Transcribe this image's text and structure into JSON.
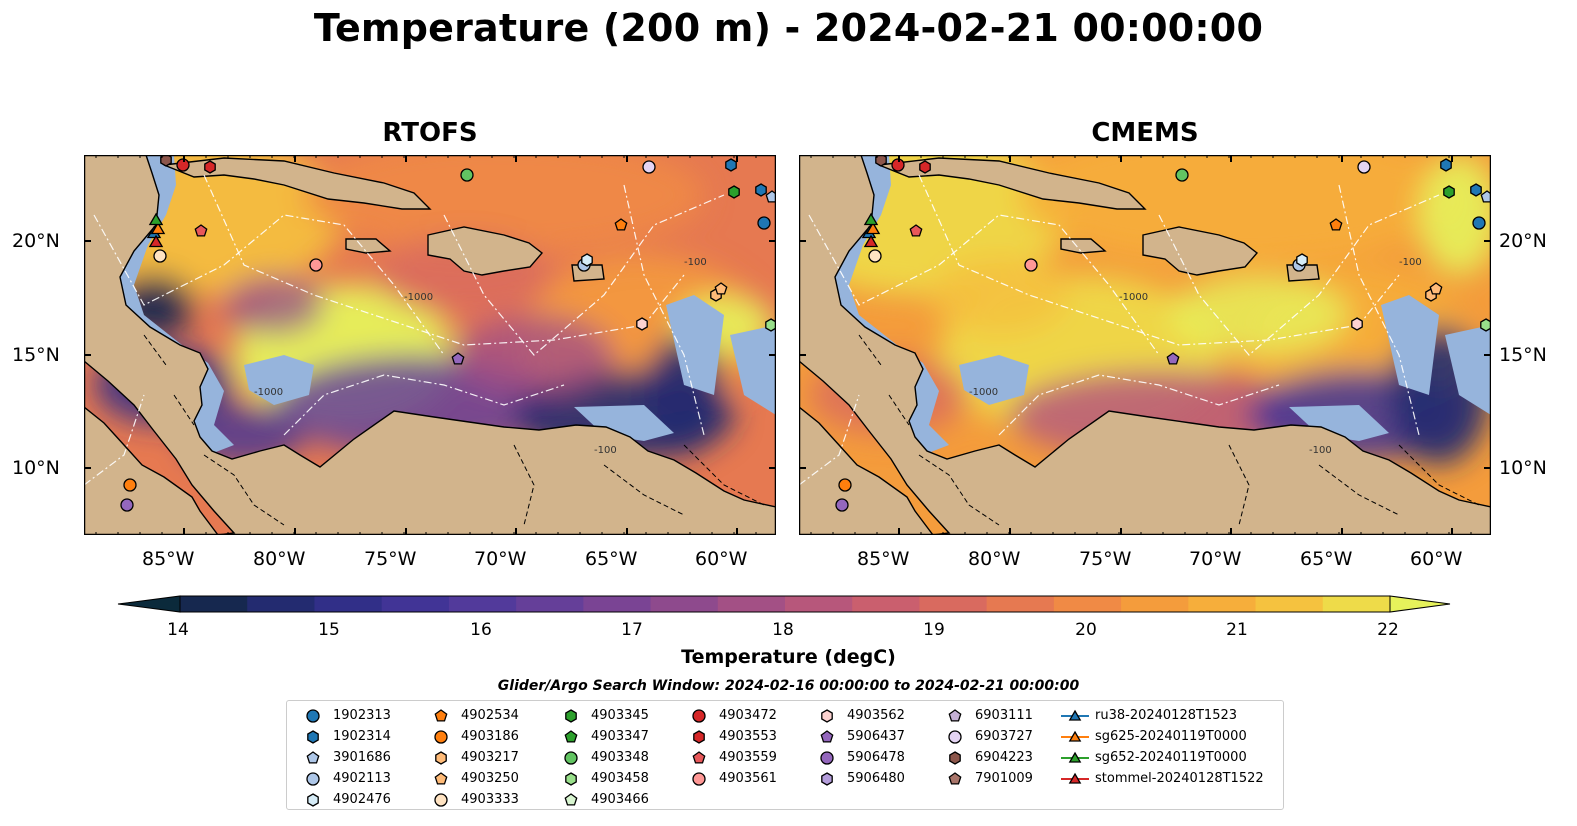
{
  "title": "Temperature (200 m) - 2024-02-21 00:00:00",
  "panels": [
    {
      "title": "RTOFS"
    },
    {
      "title": "CMEMS"
    }
  ],
  "lat_ticks": [
    "20°N",
    "15°N",
    "10°N"
  ],
  "lon_ticks": [
    "85°W",
    "80°W",
    "75°W",
    "70°W",
    "65°W",
    "60°W"
  ],
  "colorbar": {
    "label": "Temperature (degC)",
    "ticks": [
      "14",
      "15",
      "16",
      "17",
      "18",
      "19",
      "20",
      "21",
      "22"
    ],
    "min": 13.5,
    "max": 22.5,
    "colors": [
      "#0b2a3b",
      "#16284f",
      "#232b70",
      "#312f88",
      "#413496",
      "#523a9b",
      "#653f99",
      "#7a4494",
      "#8e4a8d",
      "#a35085",
      "#b7577b",
      "#ca5f6e",
      "#d96a5f",
      "#e67951",
      "#f08a45",
      "#f49c3c",
      "#f6ae3b",
      "#f5c23f",
      "#eedb49",
      "#e6f25b"
    ]
  },
  "contour_labels": [
    "-1000",
    "-100",
    "-1000",
    "-100"
  ],
  "search_window": "Glider/Argo Search Window: 2024-02-16 00:00:00 to 2024-02-21 00:00:00",
  "legend": [
    {
      "label": "1902313",
      "color": "#1f77b4",
      "shape": "circle"
    },
    {
      "label": "1902314",
      "color": "#1f77b4",
      "shape": "hexagon"
    },
    {
      "label": "3901686",
      "color": "#aec7e8",
      "shape": "pentagon"
    },
    {
      "label": "4902113",
      "color": "#aec7e8",
      "shape": "circle"
    },
    {
      "label": "4902476",
      "color": "#d6ecf7",
      "shape": "hexagon"
    },
    {
      "label": "4902534",
      "color": "#ff7f0e",
      "shape": "pentagon"
    },
    {
      "label": "4903186",
      "color": "#ff7f0e",
      "shape": "circle"
    },
    {
      "label": "4903217",
      "color": "#ffbb78",
      "shape": "hexagon"
    },
    {
      "label": "4903250",
      "color": "#ffbb78",
      "shape": "pentagon"
    },
    {
      "label": "4903333",
      "color": "#ffe3c2",
      "shape": "circle"
    },
    {
      "label": "4903345",
      "color": "#2ca02c",
      "shape": "hexagon"
    },
    {
      "label": "4903347",
      "color": "#2ca02c",
      "shape": "pentagon"
    },
    {
      "label": "4903348",
      "color": "#62c462",
      "shape": "circle"
    },
    {
      "label": "4903458",
      "color": "#98df8a",
      "shape": "hexagon"
    },
    {
      "label": "4903466",
      "color": "#d8f5d0",
      "shape": "pentagon"
    },
    {
      "label": "4903472",
      "color": "#d62728",
      "shape": "circle"
    },
    {
      "label": "4903553",
      "color": "#d62728",
      "shape": "hexagon"
    },
    {
      "label": "4903559",
      "color": "#e8585a",
      "shape": "pentagon"
    },
    {
      "label": "4903561",
      "color": "#ff9896",
      "shape": "circle"
    },
    {
      "label": "4903562",
      "color": "#fcd2d0",
      "shape": "hexagon"
    },
    {
      "label": "5906437",
      "color": "#9467bd",
      "shape": "pentagon"
    },
    {
      "label": "5906478",
      "color": "#9467bd",
      "shape": "circle"
    },
    {
      "label": "5906480",
      "color": "#b49ddb",
      "shape": "hexagon"
    },
    {
      "label": "6903111",
      "color": "#c5b0d5",
      "shape": "pentagon"
    },
    {
      "label": "6903727",
      "color": "#e4d4f3",
      "shape": "circle"
    },
    {
      "label": "6904223",
      "color": "#8c564b",
      "shape": "hexagon"
    },
    {
      "label": "7901009",
      "color": "#a9756a",
      "shape": "pentagon"
    },
    {
      "label": "ru38-20240128T1523",
      "color": "#1f77b4",
      "shape": "triangle-line"
    },
    {
      "label": "sg625-20240119T0000",
      "color": "#ff7f0e",
      "shape": "triangle-line"
    },
    {
      "label": "sg652-20240119T0000",
      "color": "#2ca02c",
      "shape": "triangle-line"
    },
    {
      "label": "stommel-20240128T1522",
      "color": "#d62728",
      "shape": "triangle-line"
    }
  ]
}
